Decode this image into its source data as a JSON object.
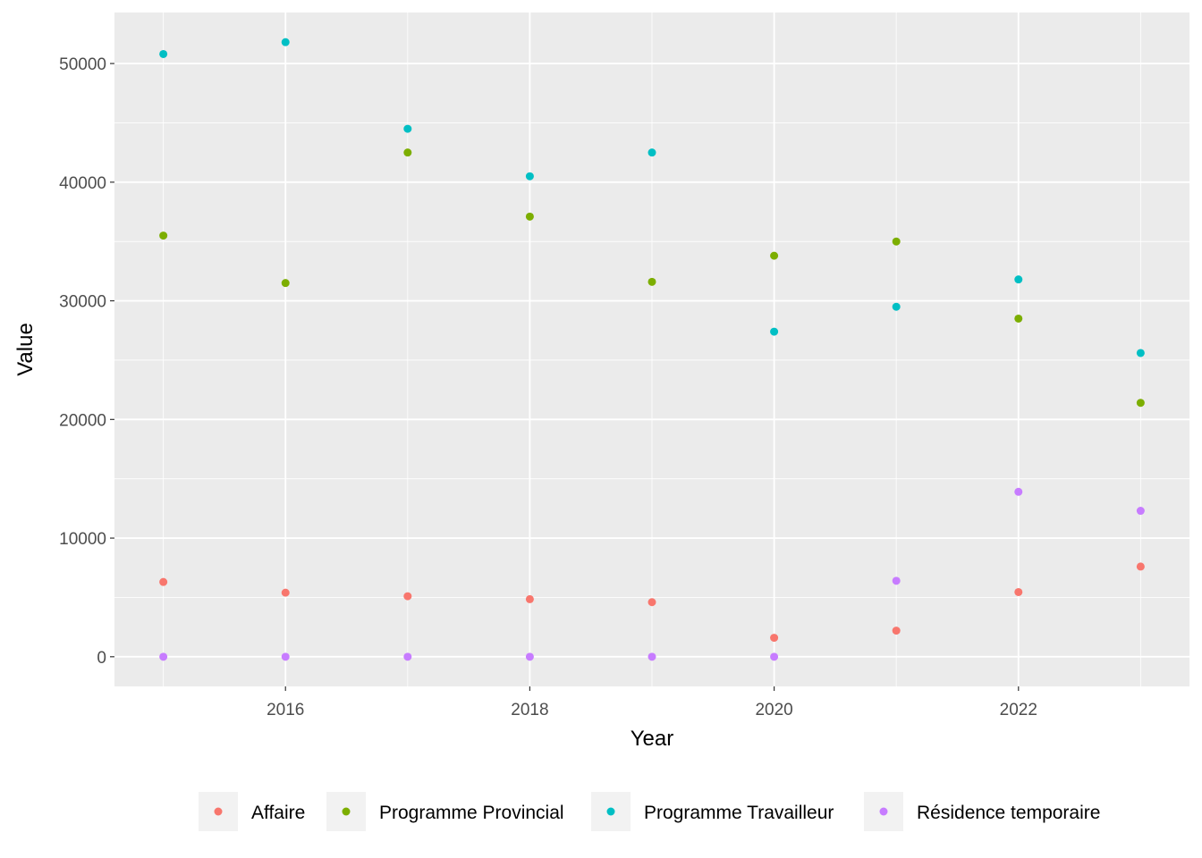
{
  "chart_data": {
    "type": "scatter",
    "title": "",
    "xlabel": "Year",
    "ylabel": "Value",
    "xlim": [
      2014.6,
      2023.4
    ],
    "ylim": [
      -2500,
      54300
    ],
    "x_ticks": [
      2016,
      2018,
      2020,
      2022
    ],
    "y_ticks": [
      0,
      10000,
      20000,
      30000,
      40000,
      50000
    ],
    "x_tick_labels": [
      "2016",
      "2018",
      "2020",
      "2022"
    ],
    "y_tick_labels": [
      "0",
      "10000",
      "20000",
      "30000",
      "40000",
      "50000"
    ],
    "grid": true,
    "legend_position": "bottom",
    "x": [
      2015,
      2016,
      2017,
      2018,
      2019,
      2020,
      2021,
      2022,
      2023
    ],
    "series": [
      {
        "name": "Affaire",
        "color": "#F8766D",
        "values": [
          6300,
          5400,
          5100,
          4850,
          4600,
          1600,
          2200,
          5450,
          7600
        ]
      },
      {
        "name": "Programme Provincial",
        "color": "#7CAE00",
        "values": [
          35500,
          31500,
          42500,
          37100,
          31600,
          33800,
          35000,
          28500,
          21400
        ]
      },
      {
        "name": "Programme Travailleur",
        "color": "#00BFC4",
        "values": [
          50800,
          51800,
          44500,
          40500,
          42500,
          27400,
          29500,
          31800,
          25600
        ]
      },
      {
        "name": "Résidence temporaire",
        "color": "#C77CFF",
        "values": [
          0,
          0,
          0,
          0,
          0,
          0,
          6400,
          13900,
          12300
        ]
      }
    ]
  }
}
